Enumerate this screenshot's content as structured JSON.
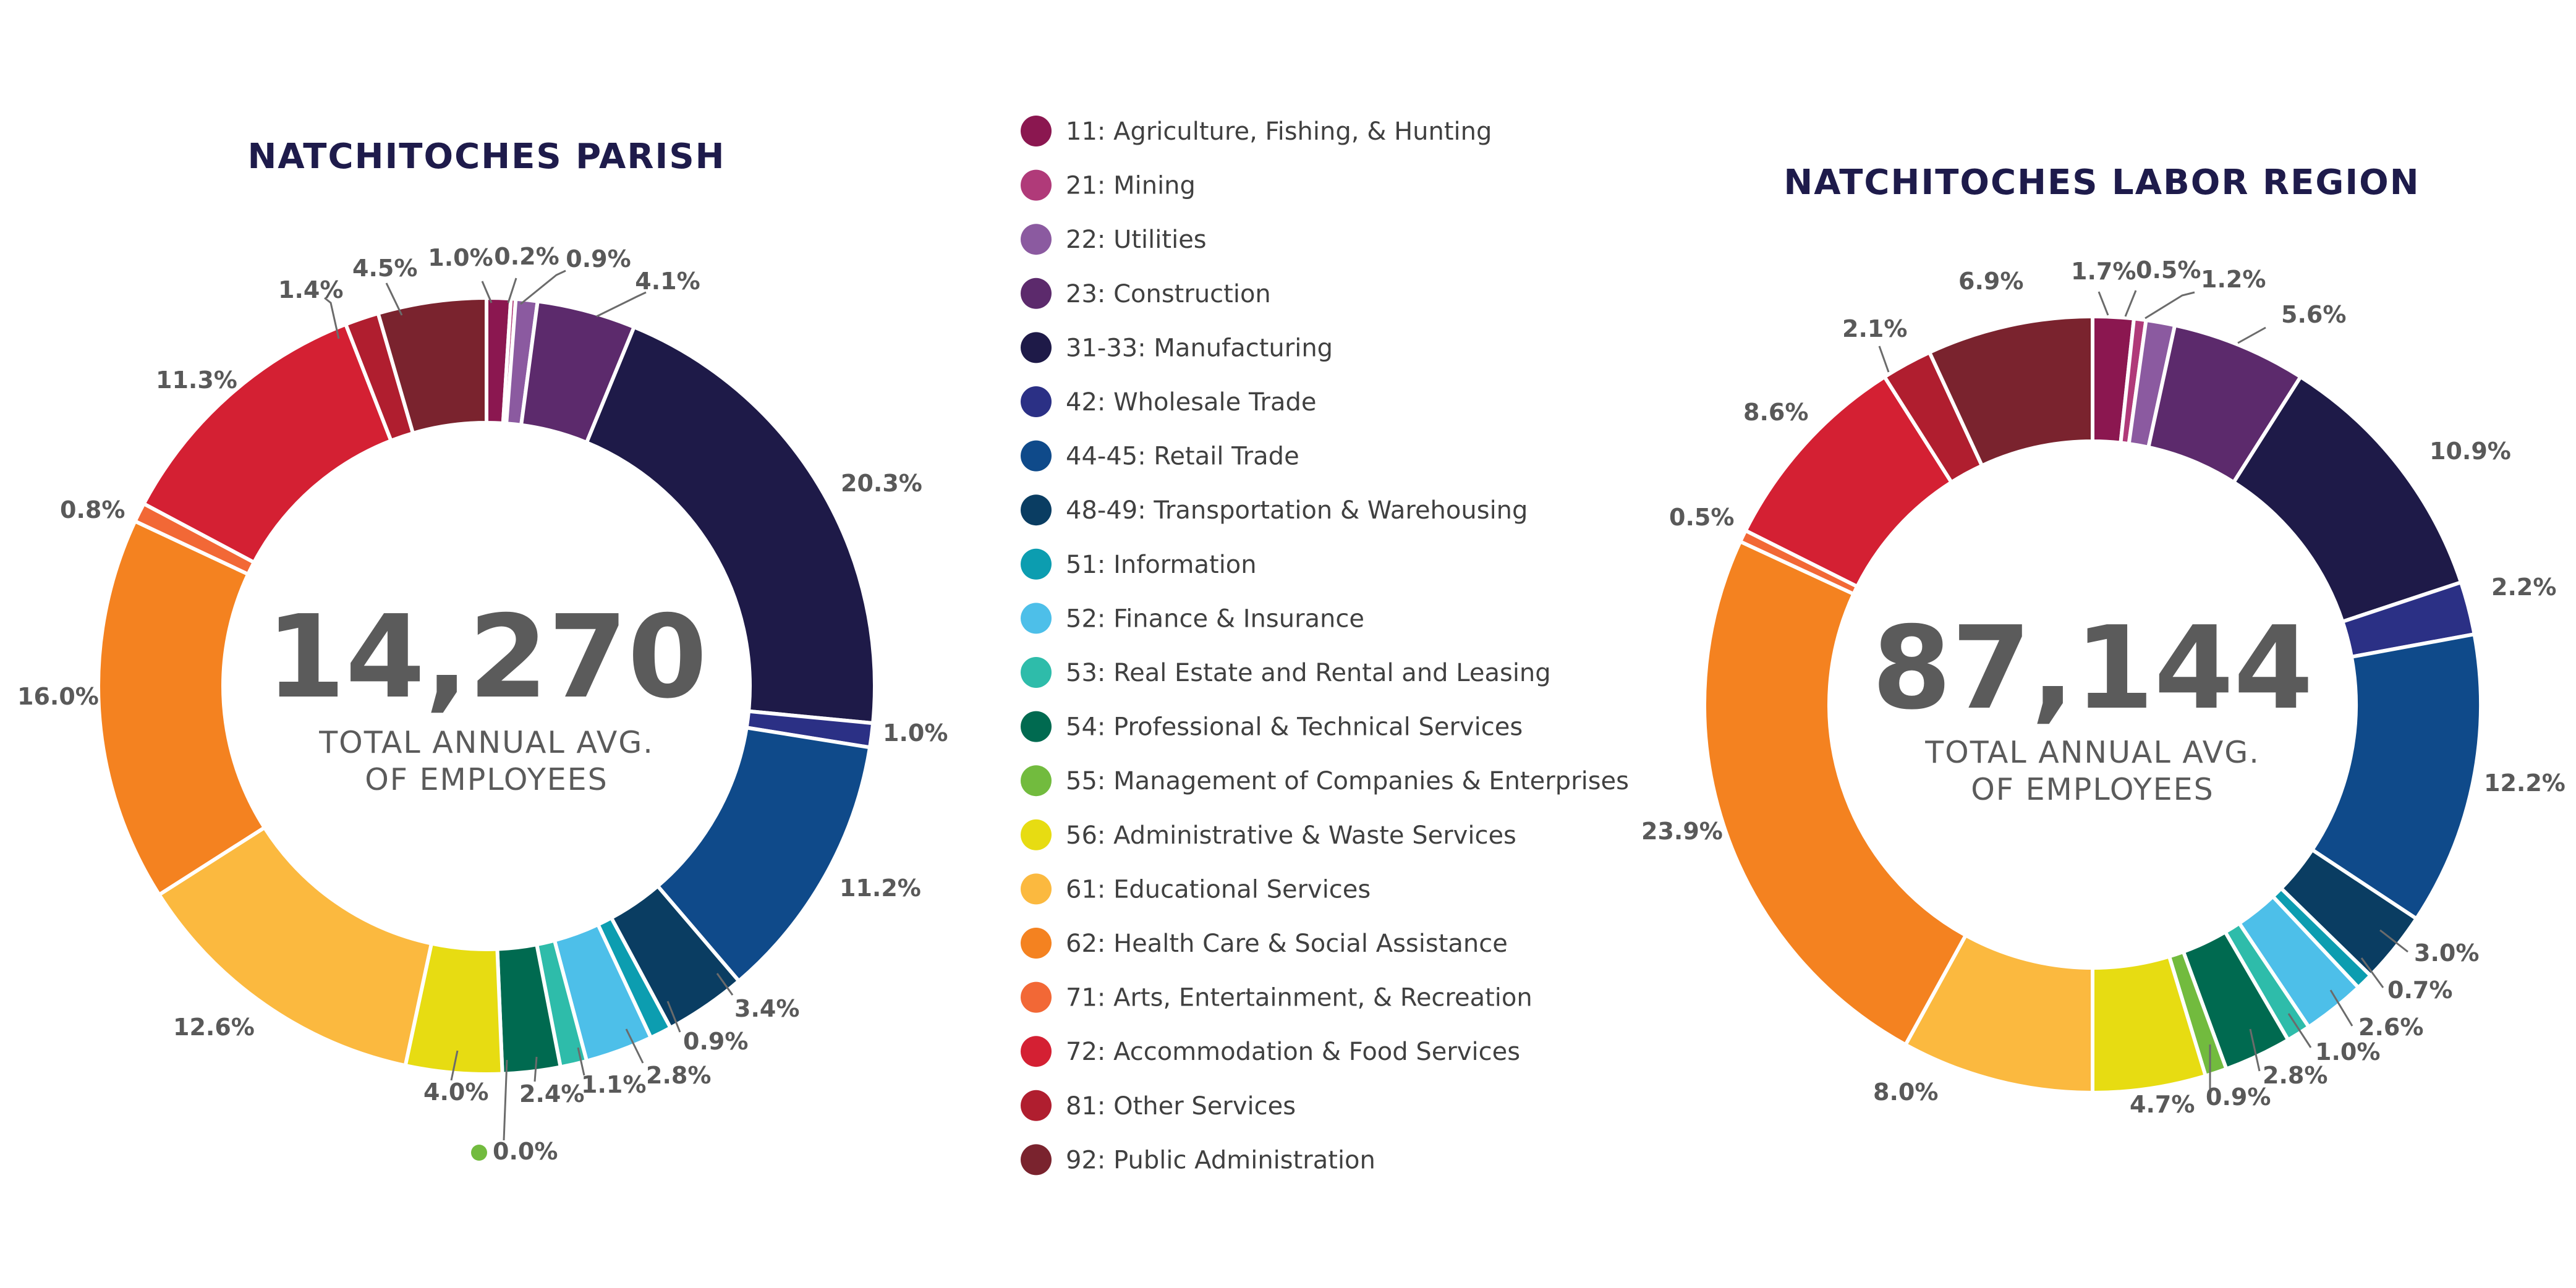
{
  "chart_data": {
    "type": "donut",
    "legend": [
      {
        "code": "11",
        "label": "11: Agriculture, Fishing, & Hunting",
        "color": "#8b1750"
      },
      {
        "code": "21",
        "label": "21: Mining",
        "color": "#b03a79"
      },
      {
        "code": "22",
        "label": "22: Utilities",
        "color": "#8b5aa0"
      },
      {
        "code": "23",
        "label": "23: Construction",
        "color": "#5c2a6c"
      },
      {
        "code": "31-33",
        "label": "31-33: Manufacturing",
        "color": "#1e1a48"
      },
      {
        "code": "42",
        "label": "42: Wholesale Trade",
        "color": "#2b3085"
      },
      {
        "code": "44-45",
        "label": "44-45: Retail Trade",
        "color": "#0f4a8a"
      },
      {
        "code": "48-49",
        "label": "48-49: Transportation & Warehousing",
        "color": "#0a3d62"
      },
      {
        "code": "51",
        "label": "51: Information",
        "color": "#0c9db0"
      },
      {
        "code": "52",
        "label": "52: Finance & Insurance",
        "color": "#4dbfe9"
      },
      {
        "code": "53",
        "label": "53: Real Estate and Rental and Leasing",
        "color": "#2ebcaa"
      },
      {
        "code": "54",
        "label": "54:  Professional & Technical Services",
        "color": "#006a50"
      },
      {
        "code": "55",
        "label": "55: Management of Companies & Enterprises",
        "color": "#72bb3e"
      },
      {
        "code": "56",
        "label": "56: Administrative & Waste Services",
        "color": "#e7dc12"
      },
      {
        "code": "61",
        "label": "61: Educational Services",
        "color": "#fbb93f"
      },
      {
        "code": "62",
        "label": "62: Health Care & Social Assistance",
        "color": "#f48220"
      },
      {
        "code": "71",
        "label": "71: Arts, Entertainment, & Recreation",
        "color": "#f26836"
      },
      {
        "code": "72",
        "label": "72: Accommodation & Food Services",
        "color": "#d42033"
      },
      {
        "code": "81",
        "label": "81: Other Services",
        "color": "#b01e2f"
      },
      {
        "code": "92",
        "label": "92: Public Administration",
        "color": "#7a232e"
      }
    ],
    "charts": [
      {
        "title": "NATCHITOCHES PARISH",
        "total": "14,270",
        "subtitle_line1": "TOTAL ANNUAL AVG.",
        "subtitle_line2": "OF EMPLOYEES",
        "values": [
          1.0,
          0.2,
          0.9,
          4.1,
          20.3,
          1.0,
          11.2,
          3.4,
          0.9,
          2.8,
          1.1,
          2.4,
          0.0,
          4.0,
          12.6,
          16.0,
          0.8,
          11.3,
          1.4,
          4.5
        ],
        "labels": [
          "1.0%",
          "0.2%",
          "0.9%",
          "4.1%",
          "20.3%",
          "1.0%",
          "11.2%",
          "3.4%",
          "0.9%",
          "2.8%",
          "1.1%",
          "2.4%",
          "0.0%",
          "4.0%",
          "12.6%",
          "16.0%",
          "0.8%",
          "11.3%",
          "1.4%",
          "4.5%"
        ]
      },
      {
        "title": "NATCHITOCHES LABOR REGION",
        "total": "87,144",
        "subtitle_line1": "TOTAL ANNUAL AVG.",
        "subtitle_line2": "OF EMPLOYEES",
        "values": [
          1.7,
          0.5,
          1.2,
          5.6,
          10.9,
          2.2,
          12.2,
          3.0,
          0.7,
          2.6,
          1.0,
          2.8,
          0.9,
          4.7,
          8.0,
          23.9,
          0.5,
          8.6,
          2.1,
          6.9
        ],
        "labels": [
          "1.7%",
          "0.5%",
          "1.2%",
          "5.6%",
          "10.9%",
          "2.2%",
          "12.2%",
          "3.0%",
          "0.7%",
          "2.6%",
          "1.0%",
          "2.8%",
          "0.9%",
          "4.7%",
          "8.0%",
          "23.9%",
          "0.5%",
          "8.6%",
          "2.1%",
          "6.9%"
        ]
      }
    ]
  }
}
